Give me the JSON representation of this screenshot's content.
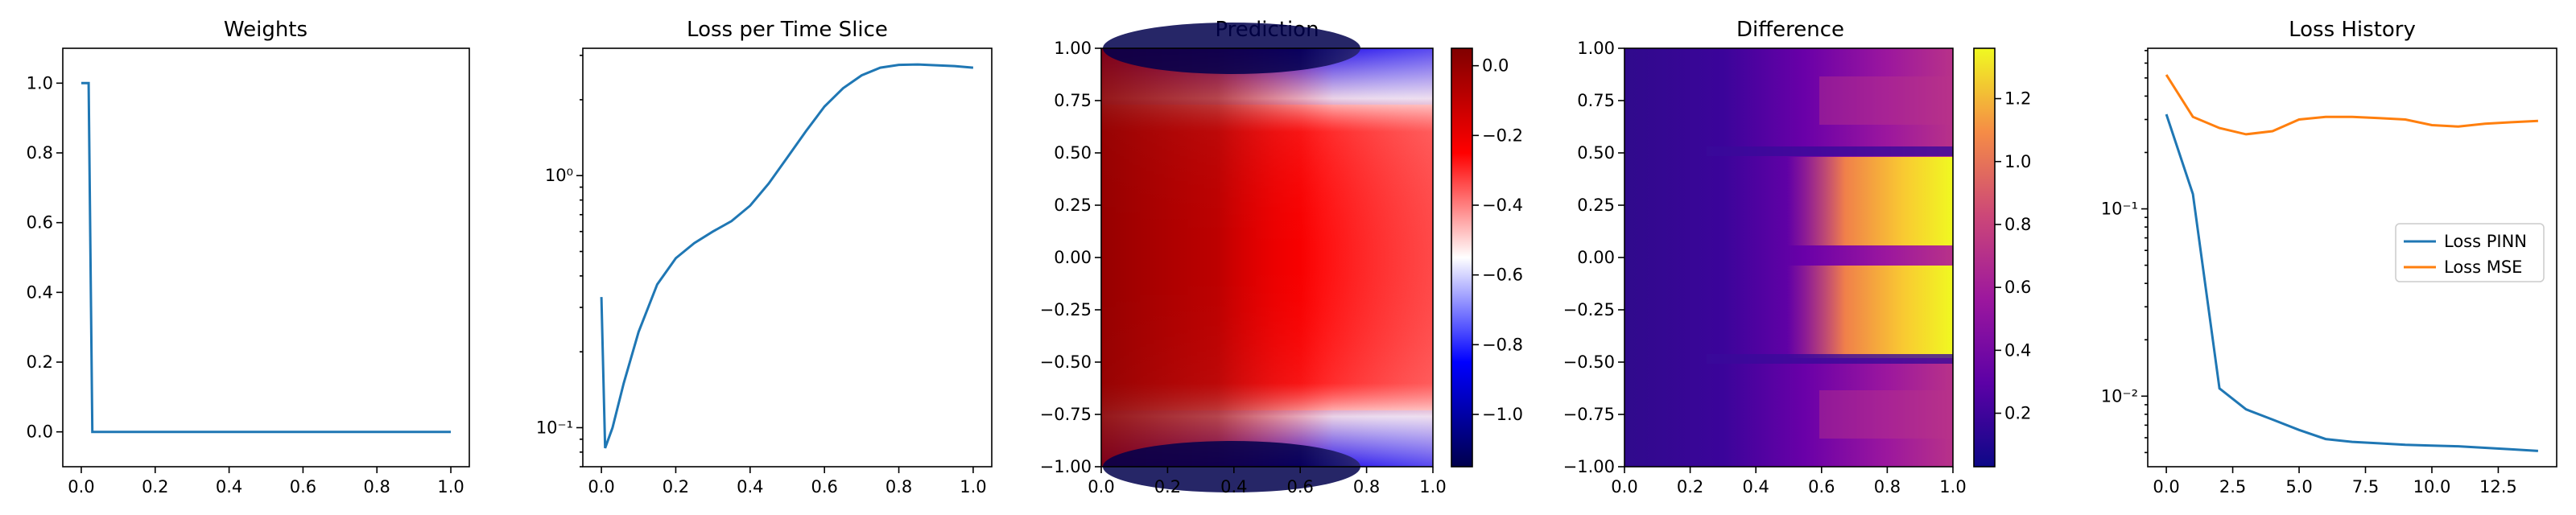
{
  "colors": {
    "line_blue": "#1f77b4",
    "line_orange": "#ff7f0e",
    "axis": "#000000"
  },
  "chart_data": [
    {
      "type": "line",
      "title": "Weights",
      "xlabel": "",
      "ylabel": "",
      "xlim": [
        -0.05,
        1.05
      ],
      "ylim": [
        -0.1,
        1.1
      ],
      "x_ticks": [
        0.0,
        0.2,
        0.4,
        0.6,
        0.8,
        1.0
      ],
      "x_tick_labels": [
        "0.0",
        "0.2",
        "0.4",
        "0.6",
        "0.8",
        "1.0"
      ],
      "y_ticks": [
        0.0,
        0.2,
        0.4,
        0.6,
        0.8,
        1.0
      ],
      "y_tick_labels": [
        "0.0",
        "0.2",
        "0.4",
        "0.6",
        "0.8",
        "1.0"
      ],
      "yscale": "linear",
      "grid": false,
      "series": [
        {
          "color": "#1f77b4",
          "x": [
            0.0,
            0.02,
            0.03,
            1.0
          ],
          "y": [
            1.0,
            1.0,
            0.0,
            0.0
          ]
        }
      ]
    },
    {
      "type": "line",
      "title": "Loss per Time Slice",
      "xlabel": "",
      "ylabel": "",
      "xlim": [
        -0.05,
        1.05
      ],
      "ylim": [
        0.07,
        3.2
      ],
      "yscale": "log",
      "x_ticks": [
        0.0,
        0.2,
        0.4,
        0.6,
        0.8,
        1.0
      ],
      "x_tick_labels": [
        "0.0",
        "0.2",
        "0.4",
        "0.6",
        "0.8",
        "1.0"
      ],
      "y_ticks": [
        0.1,
        1.0
      ],
      "y_tick_labels": [
        "10⁻¹",
        "10⁰"
      ],
      "grid": false,
      "series": [
        {
          "color": "#1f77b4",
          "x": [
            0.0,
            0.01,
            0.03,
            0.06,
            0.1,
            0.15,
            0.2,
            0.25,
            0.3,
            0.35,
            0.4,
            0.45,
            0.5,
            0.55,
            0.6,
            0.65,
            0.7,
            0.75,
            0.8,
            0.85,
            0.9,
            0.95,
            1.0
          ],
          "y": [
            0.33,
            0.083,
            0.1,
            0.15,
            0.24,
            0.37,
            0.47,
            0.54,
            0.6,
            0.66,
            0.76,
            0.93,
            1.18,
            1.5,
            1.88,
            2.22,
            2.5,
            2.68,
            2.75,
            2.76,
            2.74,
            2.72,
            2.68
          ]
        }
      ]
    },
    {
      "type": "heatmap",
      "title": "Prediction",
      "xlabel": "",
      "ylabel": "",
      "xlim": [
        0.0,
        1.0
      ],
      "ylim": [
        -1.0,
        1.0
      ],
      "x_ticks": [
        0.0,
        0.2,
        0.4,
        0.6,
        0.8,
        1.0
      ],
      "x_tick_labels": [
        "0.0",
        "0.2",
        "0.4",
        "0.6",
        "0.8",
        "1.0"
      ],
      "y_ticks": [
        -1.0,
        -0.75,
        -0.5,
        -0.25,
        0.0,
        0.25,
        0.5,
        0.75,
        1.0
      ],
      "y_tick_labels": [
        "−1.00",
        "−0.75",
        "−0.50",
        "−0.25",
        "0.00",
        "0.25",
        "0.50",
        "0.75",
        "1.00"
      ],
      "colormap": "seismic",
      "value_range": [
        -1.15,
        0.05
      ],
      "colorbar_ticks": [
        -1.0,
        -0.8,
        -0.6,
        -0.4,
        -0.2,
        0.0
      ],
      "colorbar_tick_labels": [
        "−1.0",
        "−0.8",
        "−0.6",
        "−0.4",
        "−0.2",
        "0.0"
      ]
    },
    {
      "type": "heatmap",
      "title": "Difference",
      "xlabel": "",
      "ylabel": "",
      "xlim": [
        0.0,
        1.0
      ],
      "ylim": [
        -1.0,
        1.0
      ],
      "x_ticks": [
        0.0,
        0.2,
        0.4,
        0.6,
        0.8,
        1.0
      ],
      "x_tick_labels": [
        "0.0",
        "0.2",
        "0.4",
        "0.6",
        "0.8",
        "1.0"
      ],
      "y_ticks": [
        -1.0,
        -0.75,
        -0.5,
        -0.25,
        0.0,
        0.25,
        0.5,
        0.75,
        1.0
      ],
      "y_tick_labels": [
        "−1.00",
        "−0.75",
        "−0.50",
        "−0.25",
        "0.00",
        "0.25",
        "0.50",
        "0.75",
        "1.00"
      ],
      "colormap": "plasma",
      "value_range": [
        0.03,
        1.36
      ],
      "colorbar_ticks": [
        0.2,
        0.4,
        0.6,
        0.8,
        1.0,
        1.2
      ],
      "colorbar_tick_labels": [
        "0.2",
        "0.4",
        "0.6",
        "0.8",
        "1.0",
        "1.2"
      ]
    },
    {
      "type": "line",
      "title": "Loss History",
      "xlabel": "",
      "ylabel": "",
      "xlim": [
        -0.7,
        14.7
      ],
      "ylim": [
        0.0042,
        0.72
      ],
      "yscale": "log",
      "x_ticks": [
        0.0,
        2.5,
        5.0,
        7.5,
        10.0,
        12.5
      ],
      "x_tick_labels": [
        "0.0",
        "2.5",
        "5.0",
        "7.5",
        "10.0",
        "12.5"
      ],
      "y_ticks": [
        0.01,
        0.1
      ],
      "y_tick_labels": [
        "10⁻²",
        "10⁻¹"
      ],
      "grid": false,
      "legend": "center-right",
      "series": [
        {
          "name": "Loss PINN",
          "color": "#1f77b4",
          "x": [
            0,
            1,
            2,
            3,
            4,
            5,
            6,
            7,
            8,
            9,
            10,
            11,
            12,
            13,
            14
          ],
          "y": [
            0.32,
            0.12,
            0.011,
            0.0085,
            0.0075,
            0.0066,
            0.0059,
            0.0057,
            0.0056,
            0.0055,
            0.00545,
            0.0054,
            0.0053,
            0.0052,
            0.0051
          ]
        },
        {
          "name": "Loss MSE",
          "color": "#ff7f0e",
          "x": [
            0,
            1,
            2,
            3,
            4,
            5,
            6,
            7,
            8,
            9,
            10,
            11,
            12,
            13,
            14
          ],
          "y": [
            0.52,
            0.31,
            0.27,
            0.25,
            0.26,
            0.3,
            0.31,
            0.31,
            0.305,
            0.3,
            0.28,
            0.275,
            0.285,
            0.29,
            0.295
          ]
        }
      ]
    }
  ]
}
